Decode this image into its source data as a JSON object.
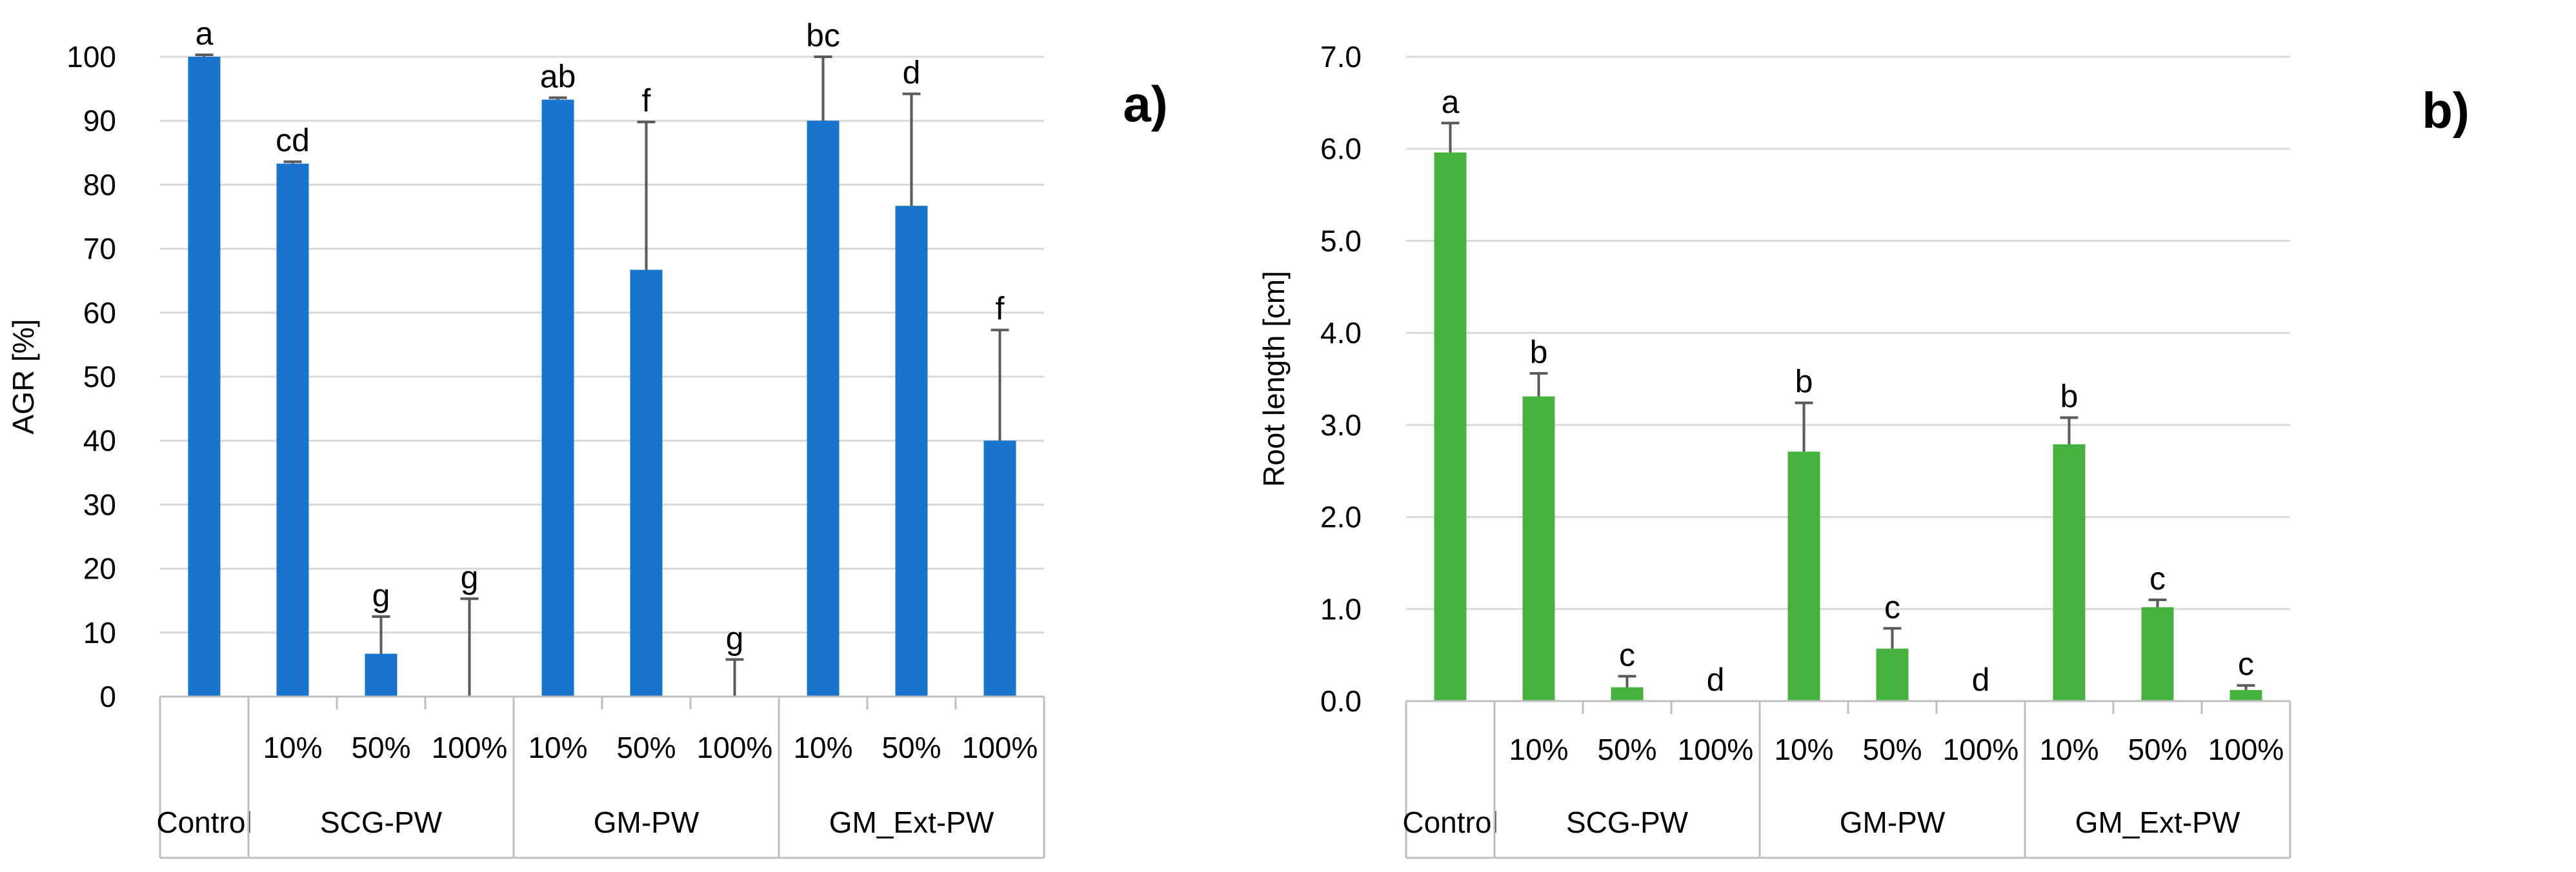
{
  "chart_data": [
    {
      "panel": "a)",
      "type": "bar",
      "ylabel": "AGR [%]",
      "ylim": [
        0,
        100
      ],
      "ytick_step": 10,
      "ytick_labels": [
        "0",
        "10",
        "20",
        "30",
        "40",
        "50",
        "60",
        "70",
        "80",
        "90",
        "100"
      ],
      "bar_color": "#1874CD",
      "groups": [
        {
          "name": "Control",
          "bars": [
            {
              "label": "",
              "value": 100,
              "error": 0.3,
              "sig": "a"
            }
          ]
        },
        {
          "name": "SCG-PW",
          "bars": [
            {
              "label": "10%",
              "value": 83.3,
              "error": 0.3,
              "sig": "cd"
            },
            {
              "label": "50%",
              "value": 6.7,
              "error": 5.8,
              "sig": "g"
            },
            {
              "label": "100%",
              "value": 0,
              "error": 15.3,
              "sig": "g"
            }
          ]
        },
        {
          "name": "GM-PW",
          "bars": [
            {
              "label": "10%",
              "value": 93.3,
              "error": 0.3,
              "sig": "ab"
            },
            {
              "label": "50%",
              "value": 66.7,
              "error": 23.1,
              "sig": "f"
            },
            {
              "label": "100%",
              "value": 0,
              "error": 5.8,
              "sig": "g"
            }
          ]
        },
        {
          "name": "GM_Ext-PW",
          "bars": [
            {
              "label": "10%",
              "value": 90,
              "error": 10,
              "sig": "bc"
            },
            {
              "label": "50%",
              "value": 76.7,
              "error": 17.5,
              "sig": "d"
            },
            {
              "label": "100%",
              "value": 40,
              "error": 17.3,
              "sig": "f"
            }
          ]
        }
      ]
    },
    {
      "panel": "b)",
      "type": "bar",
      "ylabel": "Root length [cm]",
      "ylim": [
        0,
        7
      ],
      "ytick_step": 1,
      "ytick_labels": [
        "0.0",
        "1.0",
        "2.0",
        "3.0",
        "4.0",
        "5.0",
        "6.0",
        "7.0"
      ],
      "bar_color": "#46B13E",
      "groups": [
        {
          "name": "Control",
          "bars": [
            {
              "label": "",
              "value": 5.96,
              "error": 0.32,
              "sig": "a"
            }
          ]
        },
        {
          "name": "SCG-PW",
          "bars": [
            {
              "label": "10%",
              "value": 3.31,
              "error": 0.25,
              "sig": "b"
            },
            {
              "label": "50%",
              "value": 0.15,
              "error": 0.12,
              "sig": "c"
            },
            {
              "label": "100%",
              "value": 0,
              "error": 0,
              "sig": "d"
            }
          ]
        },
        {
          "name": "GM-PW",
          "bars": [
            {
              "label": "10%",
              "value": 2.71,
              "error": 0.53,
              "sig": "b"
            },
            {
              "label": "50%",
              "value": 0.57,
              "error": 0.22,
              "sig": "c"
            },
            {
              "label": "100%",
              "value": 0,
              "error": 0,
              "sig": "d"
            }
          ]
        },
        {
          "name": "GM_Ext-PW",
          "bars": [
            {
              "label": "10%",
              "value": 2.79,
              "error": 0.29,
              "sig": "b"
            },
            {
              "label": "50%",
              "value": 1.02,
              "error": 0.08,
              "sig": "c"
            },
            {
              "label": "100%",
              "value": 0.12,
              "error": 0.05,
              "sig": "c"
            }
          ]
        }
      ]
    }
  ]
}
